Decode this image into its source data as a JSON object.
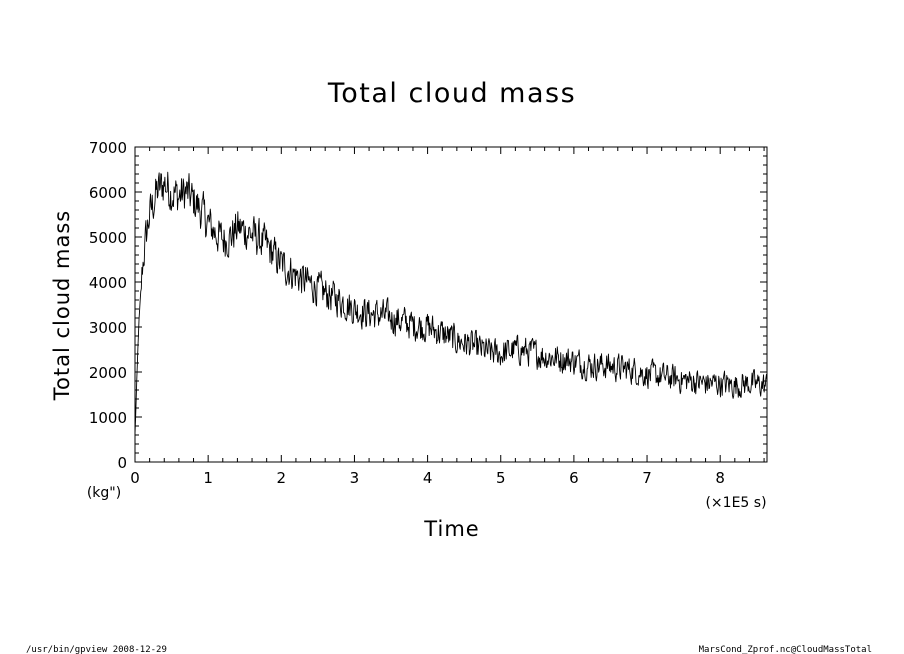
{
  "chart_data": {
    "type": "line",
    "title": "Total cloud mass",
    "xlabel": "Time",
    "ylabel": "Total cloud mass",
    "x_units": "(×1E5 s)",
    "y_units": "(kg\")",
    "xlim": [
      0,
      8.64
    ],
    "ylim": [
      0,
      7000
    ],
    "x_ticks": [
      0,
      1,
      2,
      3,
      4,
      5,
      6,
      7,
      8
    ],
    "y_ticks": [
      0,
      1000,
      2000,
      3000,
      4000,
      5000,
      6000,
      7000
    ],
    "grid": false,
    "series": [
      {
        "x": [
          0,
          0.05,
          0.1,
          0.15,
          0.2,
          0.3,
          0.4,
          0.5,
          0.6,
          0.7,
          0.8,
          0.9,
          1.0,
          1.1,
          1.2,
          1.3,
          1.4,
          1.5,
          1.6,
          1.7,
          1.8,
          1.9,
          2.0,
          2.2,
          2.4,
          2.6,
          2.8,
          3.0,
          3.2,
          3.4,
          3.6,
          3.8,
          4.0,
          4.2,
          4.4,
          4.6,
          4.8,
          5.0,
          5.2,
          5.4,
          5.6,
          5.8,
          6.0,
          6.2,
          6.4,
          6.6,
          6.8,
          7.0,
          7.2,
          7.4,
          7.6,
          7.8,
          8.0,
          8.2,
          8.4,
          8.64
        ],
        "y": [
          600,
          3000,
          4300,
          5000,
          5500,
          6000,
          6200,
          6000,
          5900,
          6000,
          5800,
          5600,
          5300,
          5100,
          4950,
          5000,
          5200,
          5150,
          5050,
          4950,
          4800,
          4600,
          4400,
          4150,
          3950,
          3750,
          3600,
          3400,
          3300,
          3250,
          3150,
          3050,
          3000,
          2850,
          2700,
          2600,
          2450,
          2400,
          2500,
          2450,
          2350,
          2300,
          2250,
          2150,
          2150,
          2100,
          2050,
          1950,
          1900,
          1850,
          1800,
          1750,
          1750,
          1700,
          1750,
          1700
        ]
      }
    ]
  },
  "footer": {
    "left": "/usr/bin/gpview   2008-12-29",
    "right": "MarsCond_Zprof.nc@CloudMassTotal"
  }
}
